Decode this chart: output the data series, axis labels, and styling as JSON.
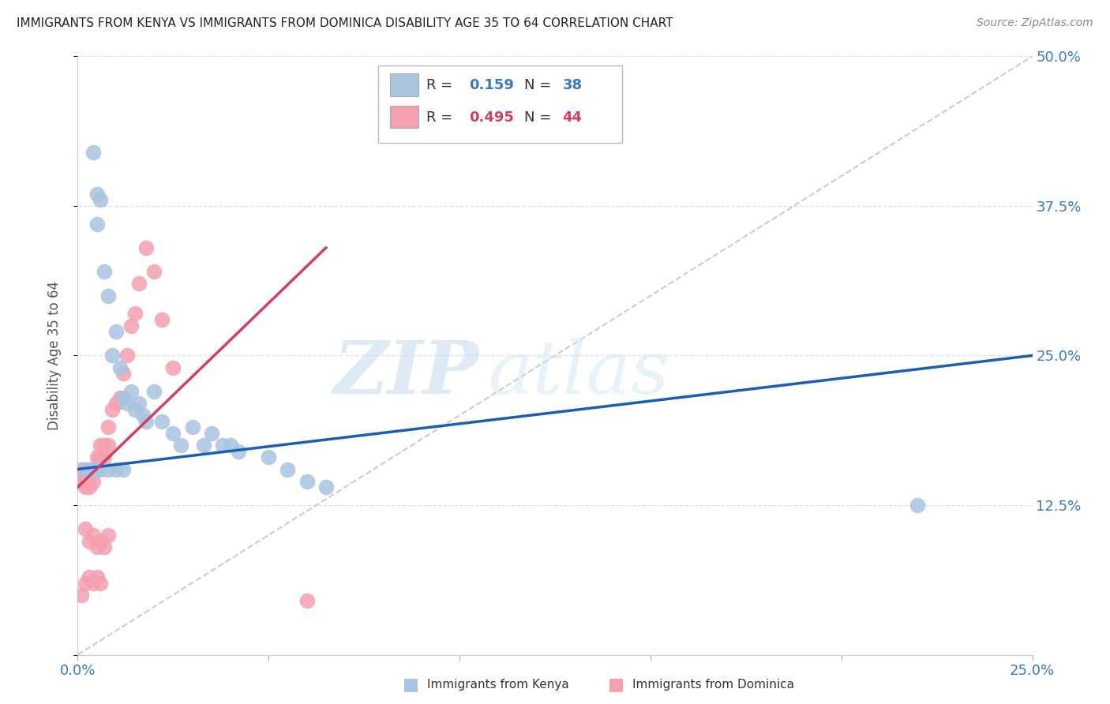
{
  "title": "IMMIGRANTS FROM KENYA VS IMMIGRANTS FROM DOMINICA DISABILITY AGE 35 TO 64 CORRELATION CHART",
  "source": "Source: ZipAtlas.com",
  "ylabel": "Disability Age 35 to 64",
  "xlim": [
    0.0,
    0.25
  ],
  "ylim": [
    0.0,
    0.5
  ],
  "xticks": [
    0.0,
    0.05,
    0.1,
    0.15,
    0.2,
    0.25
  ],
  "xticklabels": [
    "0.0%",
    "",
    "",
    "",
    "",
    "25.0%"
  ],
  "yticks": [
    0.0,
    0.125,
    0.25,
    0.375,
    0.5
  ],
  "yticklabels": [
    "",
    "12.5%",
    "25.0%",
    "37.5%",
    "50.0%"
  ],
  "kenya_color": "#a8c4e0",
  "dominica_color": "#f4a0b0",
  "kenya_R": 0.159,
  "kenya_N": 38,
  "dominica_R": 0.495,
  "dominica_N": 44,
  "trendline_kenya_color": "#1a5fb4",
  "trendline_dominica_color": "#d04060",
  "diagonal_color": "#cccccc",
  "watermark_zip": "ZIP",
  "watermark_atlas": "atlas",
  "legend_box_kenya": "#a8c4e0",
  "legend_box_dominica": "#f4a0b0",
  "kenya_x": [
    0.004,
    0.005,
    0.005,
    0.006,
    0.007,
    0.008,
    0.009,
    0.01,
    0.011,
    0.012,
    0.013,
    0.014,
    0.015,
    0.016,
    0.017,
    0.018,
    0.02,
    0.022,
    0.025,
    0.027,
    0.03,
    0.033,
    0.035,
    0.038,
    0.04,
    0.042,
    0.05,
    0.055,
    0.06,
    0.065,
    0.002,
    0.003,
    0.004,
    0.006,
    0.008,
    0.01,
    0.012,
    0.22
  ],
  "kenya_y": [
    0.42,
    0.385,
    0.36,
    0.38,
    0.32,
    0.3,
    0.25,
    0.27,
    0.24,
    0.215,
    0.21,
    0.22,
    0.205,
    0.21,
    0.2,
    0.195,
    0.22,
    0.195,
    0.185,
    0.175,
    0.19,
    0.175,
    0.185,
    0.175,
    0.175,
    0.17,
    0.165,
    0.155,
    0.145,
    0.14,
    0.155,
    0.155,
    0.155,
    0.155,
    0.155,
    0.155,
    0.155,
    0.125
  ],
  "dominica_x": [
    0.001,
    0.001,
    0.002,
    0.002,
    0.002,
    0.003,
    0.003,
    0.003,
    0.004,
    0.004,
    0.005,
    0.005,
    0.006,
    0.006,
    0.007,
    0.007,
    0.008,
    0.008,
    0.009,
    0.01,
    0.011,
    0.012,
    0.013,
    0.014,
    0.015,
    0.016,
    0.018,
    0.02,
    0.022,
    0.025,
    0.002,
    0.003,
    0.004,
    0.005,
    0.006,
    0.007,
    0.008,
    0.001,
    0.002,
    0.003,
    0.004,
    0.005,
    0.006,
    0.06
  ],
  "dominica_y": [
    0.155,
    0.145,
    0.155,
    0.145,
    0.14,
    0.155,
    0.145,
    0.14,
    0.155,
    0.145,
    0.165,
    0.155,
    0.175,
    0.165,
    0.175,
    0.165,
    0.19,
    0.175,
    0.205,
    0.21,
    0.215,
    0.235,
    0.25,
    0.275,
    0.285,
    0.31,
    0.34,
    0.32,
    0.28,
    0.24,
    0.105,
    0.095,
    0.1,
    0.09,
    0.095,
    0.09,
    0.1,
    0.05,
    0.06,
    0.065,
    0.06,
    0.065,
    0.06,
    0.045
  ],
  "background_color": "#ffffff",
  "grid_color": "#e0e0e0",
  "trendline_kenya_x0": 0.0,
  "trendline_kenya_x1": 0.25,
  "trendline_kenya_y0": 0.155,
  "trendline_kenya_y1": 0.25,
  "trendline_dominica_x0": 0.0,
  "trendline_dominica_x1": 0.065,
  "trendline_dominica_y0": 0.14,
  "trendline_dominica_y1": 0.34
}
